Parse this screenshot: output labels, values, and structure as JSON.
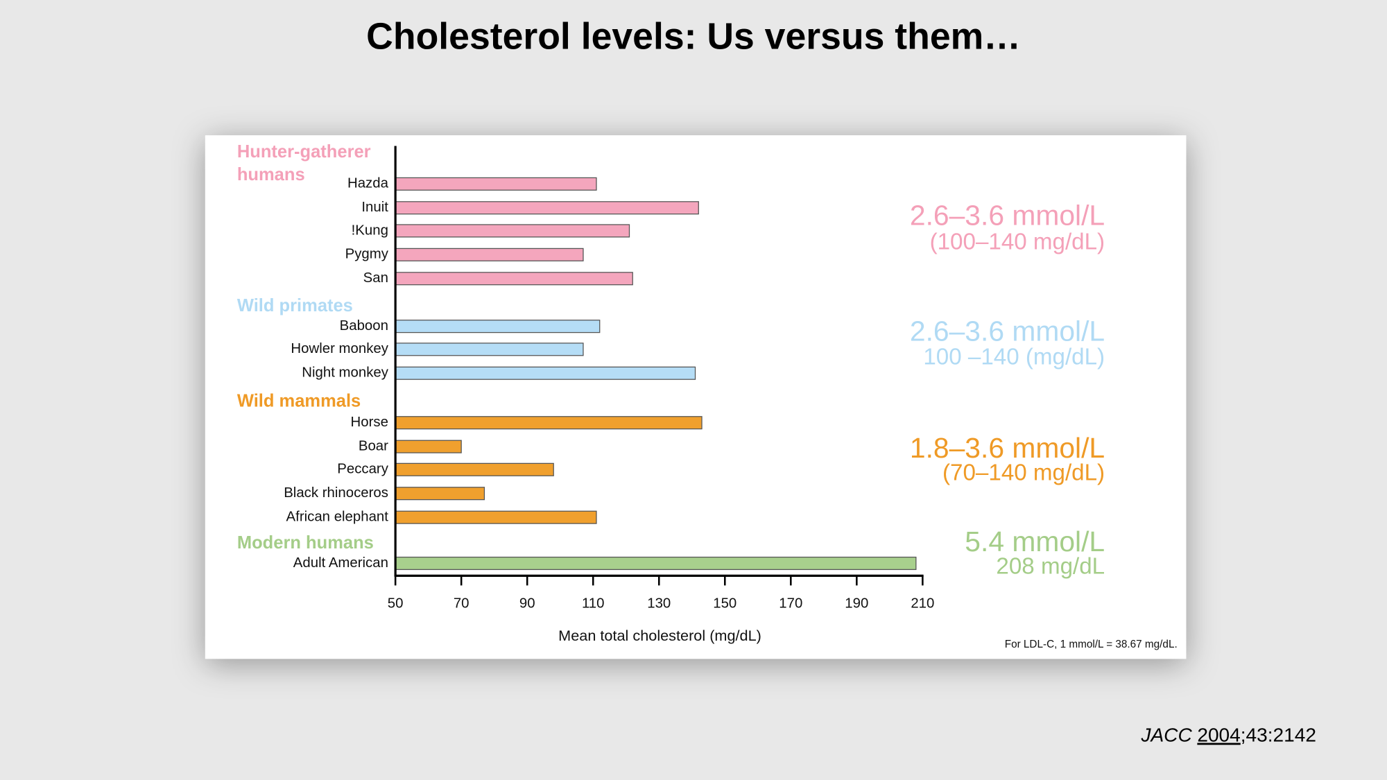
{
  "slide_title": "Cholesterol levels: Us versus them…",
  "chart_data": {
    "type": "bar",
    "orientation": "horizontal",
    "xlabel": "Mean total cholesterol (mg/dL)",
    "note": "For LDL-C, 1 mmol/L = 38.67 mg/dL.",
    "xlim": [
      50,
      210
    ],
    "xticks": [
      50,
      70,
      90,
      110,
      130,
      150,
      170,
      190,
      210
    ],
    "groups": [
      {
        "name": "Hunter-gatherer humans",
        "color": "#f4a6bd",
        "categories": [
          "Hazda",
          "Inuit",
          "!Kung",
          "Pygmy",
          "San"
        ],
        "values": [
          111,
          142,
          121,
          107,
          122
        ],
        "annotation": [
          "2.6–3.6 mmol/L",
          "(100–140 mg/dL)"
        ]
      },
      {
        "name": "Wild primates",
        "color": "#b5ddf6",
        "categories": [
          "Baboon",
          "Howler monkey",
          "Night monkey"
        ],
        "values": [
          112,
          107,
          141
        ],
        "annotation": [
          "2.6–3.6 mmol/L",
          "100 –140 (mg/dL)"
        ]
      },
      {
        "name": "Wild mammals",
        "color": "#f0a02e",
        "categories": [
          "Horse",
          "Boar",
          "Peccary",
          "Black rhinoceros",
          "African elephant"
        ],
        "values": [
          143,
          70,
          98,
          77,
          111
        ],
        "annotation": [
          "1.8–3.6 mmol/L",
          "(70–140 mg/dL)"
        ]
      },
      {
        "name": "Modern humans",
        "color": "#a8d08d",
        "categories": [
          "Adult American"
        ],
        "values": [
          208
        ],
        "annotation": [
          "5.4 mmol/L",
          "208 mg/dL"
        ]
      }
    ]
  },
  "citation": {
    "journal": "JACC",
    "year": "2004",
    "rest": ";43:2142"
  }
}
